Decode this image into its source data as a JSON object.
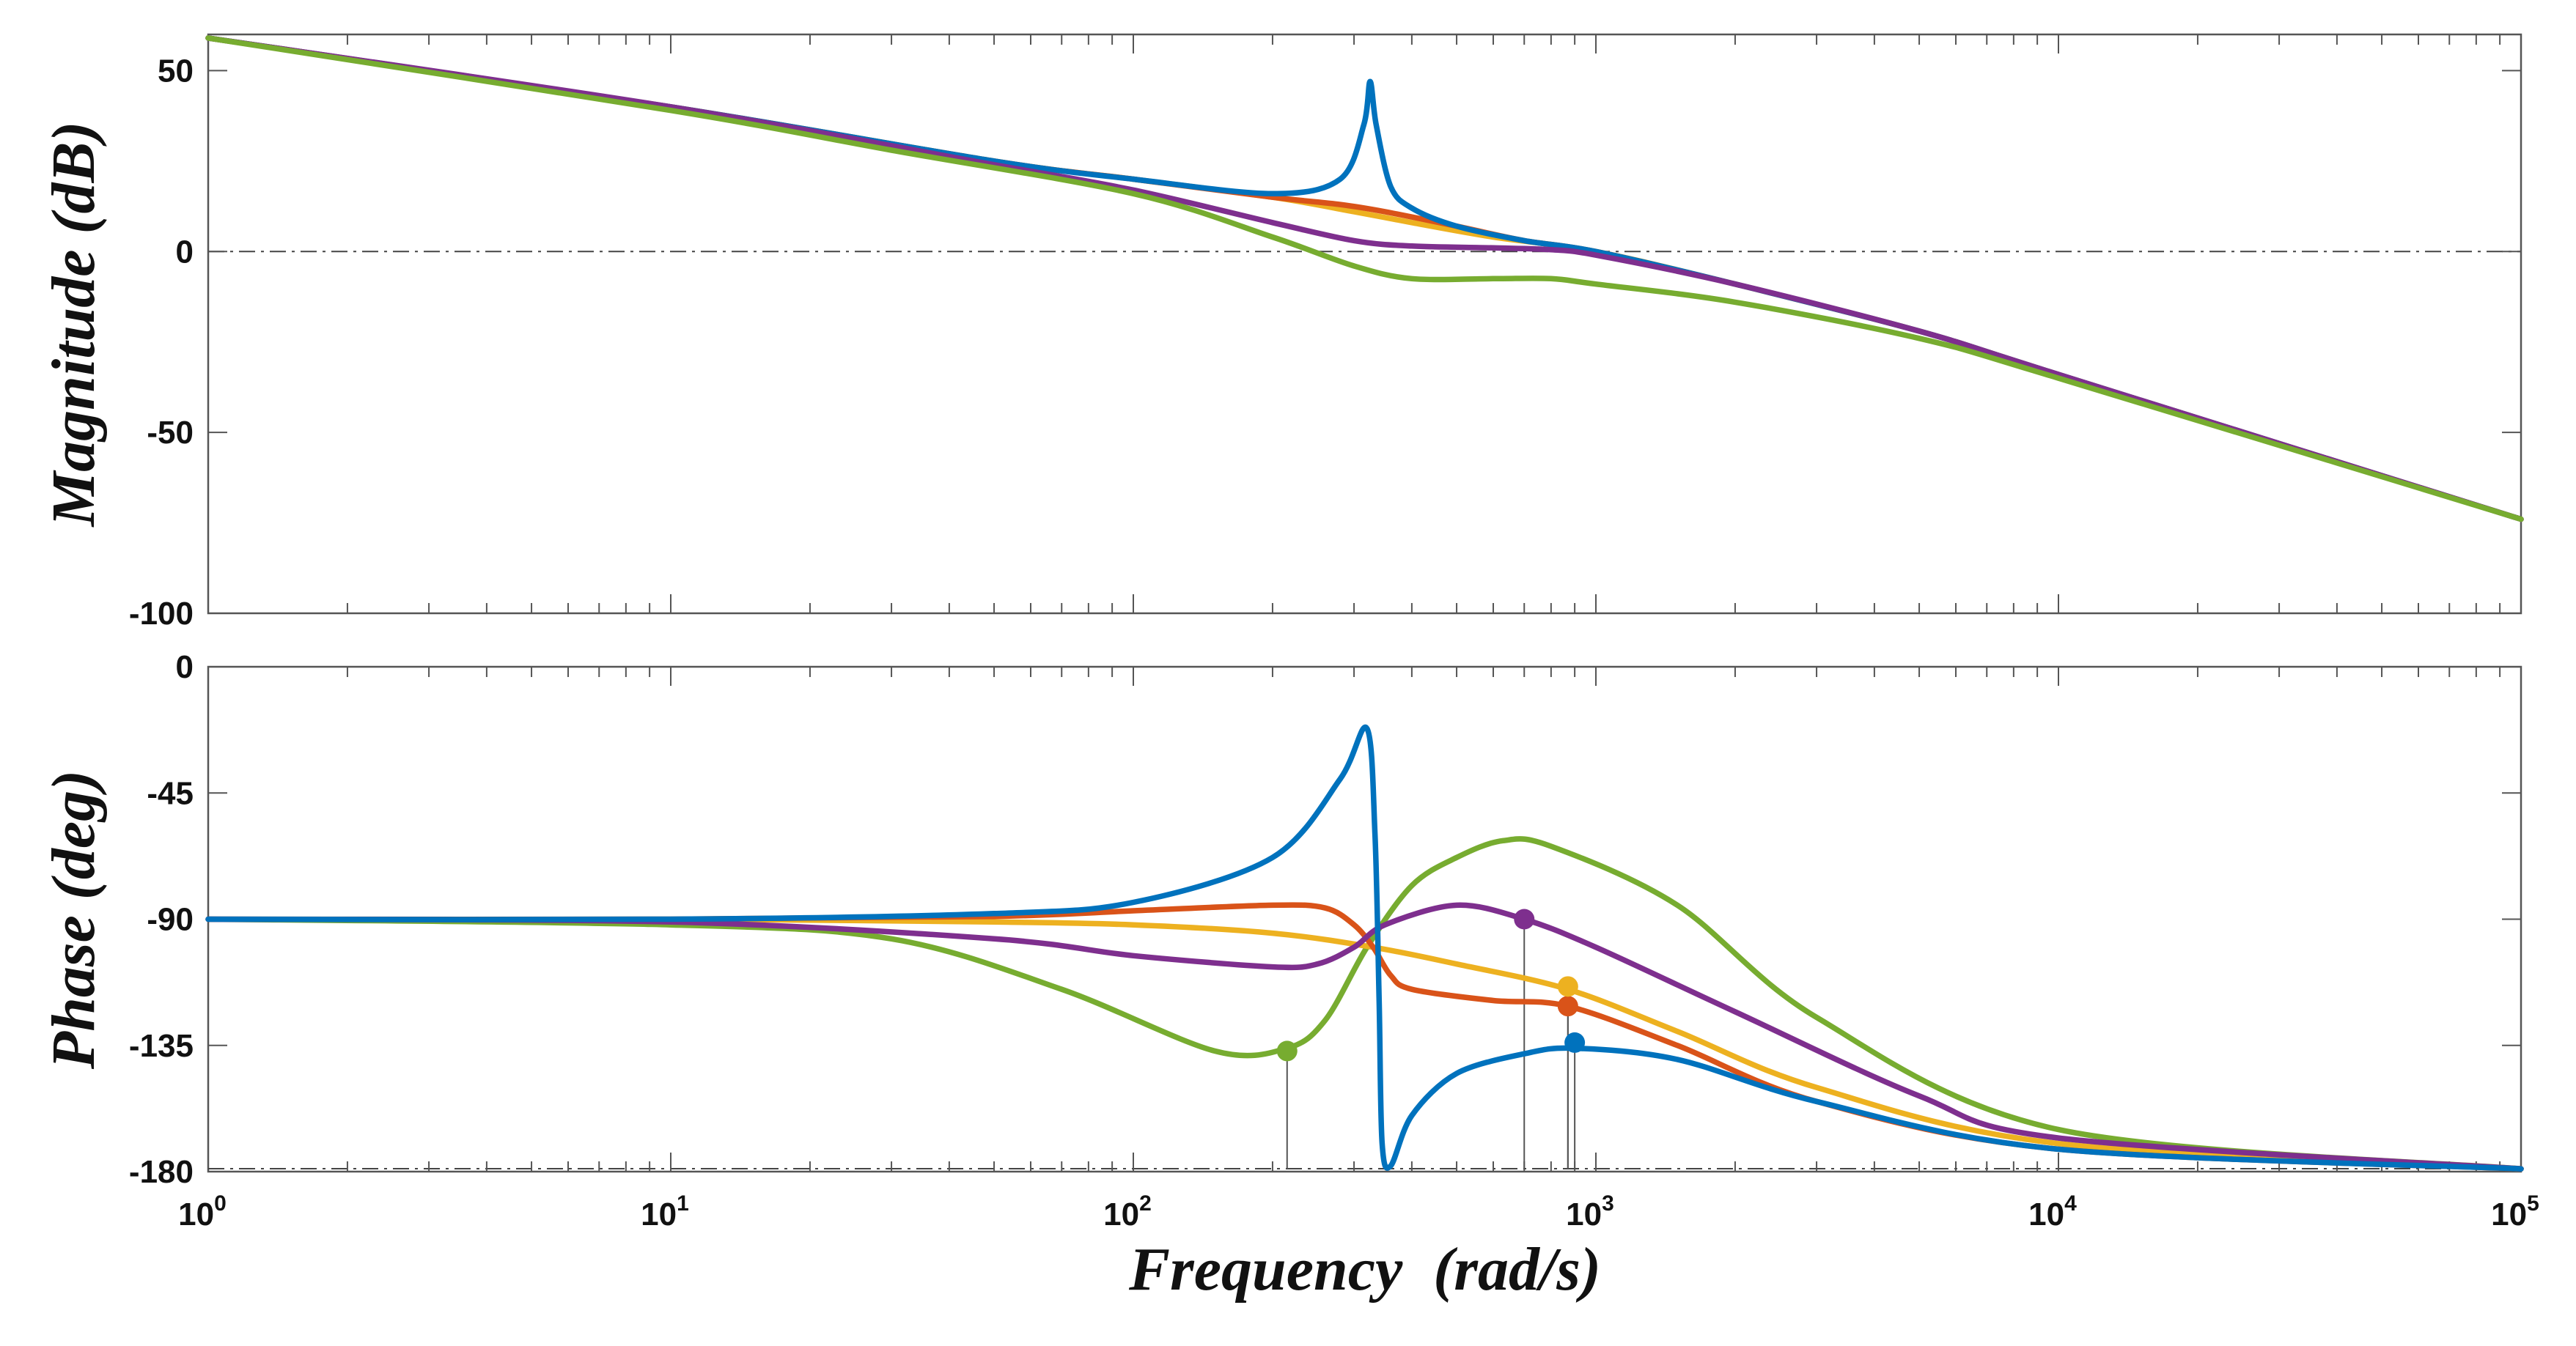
{
  "chart_data": {
    "type": "line",
    "title": "",
    "xlabel": "Frequency  (rad/s)",
    "xscale": "log",
    "xlim": [
      1,
      100000
    ],
    "x_ticks": [
      {
        "base": "10",
        "exp": "0"
      },
      {
        "base": "10",
        "exp": "1"
      },
      {
        "base": "10",
        "exp": "2"
      },
      {
        "base": "10",
        "exp": "3"
      },
      {
        "base": "10",
        "exp": "4"
      },
      {
        "base": "10",
        "exp": "5"
      }
    ],
    "magnitude": {
      "ylabel": "Magnitude (dB)",
      "ylim": [
        -100,
        60
      ],
      "y_ticks": [
        "50",
        "0",
        "-50",
        "-100"
      ],
      "reference_line": 0
    },
    "phase": {
      "ylabel": "Phase (deg)",
      "ylim": [
        -180,
        0
      ],
      "y_ticks": [
        "0",
        "-45",
        "-90",
        "-135",
        "-180"
      ],
      "reference_line": -180
    },
    "series": [
      {
        "name": "blue",
        "color": "#0072BD",
        "magnitude": [
          [
            1,
            59
          ],
          [
            10,
            40
          ],
          [
            50,
            25
          ],
          [
            100,
            20
          ],
          [
            200,
            16
          ],
          [
            280,
            20
          ],
          [
            315,
            35
          ],
          [
            325,
            47
          ],
          [
            335,
            35
          ],
          [
            360,
            18
          ],
          [
            400,
            12
          ],
          [
            500,
            7
          ],
          [
            700,
            3
          ],
          [
            1000,
            0
          ],
          [
            2000,
            -9
          ],
          [
            5000,
            -22
          ],
          [
            10000,
            -34
          ],
          [
            100000,
            -74
          ]
        ],
        "phase": [
          [
            1,
            -90
          ],
          [
            10,
            -90
          ],
          [
            50,
            -88
          ],
          [
            100,
            -84
          ],
          [
            200,
            -68
          ],
          [
            280,
            -40
          ],
          [
            320,
            -22
          ],
          [
            333,
            -60
          ],
          [
            340,
            -120
          ],
          [
            345,
            -170
          ],
          [
            360,
            -178
          ],
          [
            400,
            -160
          ],
          [
            500,
            -145
          ],
          [
            700,
            -138
          ],
          [
            900,
            -136
          ],
          [
            1500,
            -140
          ],
          [
            3000,
            -155
          ],
          [
            10000,
            -172
          ],
          [
            100000,
            -179
          ]
        ],
        "phase_margin_point": [
          900,
          -134
        ]
      },
      {
        "name": "orange",
        "color": "#D95319",
        "magnitude": [
          [
            1,
            59
          ],
          [
            10,
            40
          ],
          [
            50,
            25
          ],
          [
            100,
            20
          ],
          [
            200,
            15
          ],
          [
            280,
            13
          ],
          [
            350,
            11
          ],
          [
            500,
            7
          ],
          [
            700,
            3
          ],
          [
            1000,
            0
          ],
          [
            2000,
            -9
          ],
          [
            5000,
            -22
          ],
          [
            10000,
            -34
          ],
          [
            100000,
            -74
          ]
        ],
        "phase": [
          [
            1,
            -90
          ],
          [
            10,
            -90
          ],
          [
            50,
            -89
          ],
          [
            100,
            -87
          ],
          [
            200,
            -85
          ],
          [
            260,
            -86
          ],
          [
            300,
            -92
          ],
          [
            330,
            -100
          ],
          [
            360,
            -110
          ],
          [
            400,
            -115
          ],
          [
            600,
            -119
          ],
          [
            870,
            -121
          ],
          [
            1500,
            -135
          ],
          [
            3000,
            -155
          ],
          [
            10000,
            -172
          ],
          [
            100000,
            -179
          ]
        ],
        "phase_margin_point": [
          870,
          -121
        ]
      },
      {
        "name": "yellow",
        "color": "#EDB120",
        "magnitude": [
          [
            1,
            59
          ],
          [
            10,
            40
          ],
          [
            50,
            25
          ],
          [
            100,
            20
          ],
          [
            200,
            15
          ],
          [
            300,
            11
          ],
          [
            400,
            8
          ],
          [
            600,
            4
          ],
          [
            1000,
            0
          ],
          [
            2000,
            -9
          ],
          [
            5000,
            -22
          ],
          [
            10000,
            -34
          ],
          [
            100000,
            -74
          ]
        ],
        "phase": [
          [
            12,
            -90
          ],
          [
            50,
            -91
          ],
          [
            100,
            -92
          ],
          [
            200,
            -95
          ],
          [
            330,
            -100
          ],
          [
            500,
            -106
          ],
          [
            870,
            -115
          ],
          [
            1500,
            -130
          ],
          [
            3000,
            -150
          ],
          [
            10000,
            -170
          ],
          [
            100000,
            -179
          ]
        ],
        "phase_margin_point": [
          870,
          -114
        ]
      },
      {
        "name": "purple",
        "color": "#7E2F8E",
        "magnitude": [
          [
            1,
            59
          ],
          [
            10,
            40
          ],
          [
            50,
            24
          ],
          [
            100,
            17
          ],
          [
            200,
            8
          ],
          [
            300,
            3
          ],
          [
            400,
            1.5
          ],
          [
            600,
            1
          ],
          [
            800,
            0.5
          ],
          [
            1000,
            -1
          ],
          [
            2000,
            -9
          ],
          [
            5000,
            -22
          ],
          [
            10000,
            -34
          ],
          [
            100000,
            -74
          ]
        ],
        "phase": [
          [
            1,
            -90
          ],
          [
            10,
            -91
          ],
          [
            50,
            -97
          ],
          [
            100,
            -103
          ],
          [
            200,
            -107
          ],
          [
            250,
            -106
          ],
          [
            300,
            -100
          ],
          [
            350,
            -92
          ],
          [
            500,
            -85
          ],
          [
            700,
            -90
          ],
          [
            1000,
            -100
          ],
          [
            2000,
            -123
          ],
          [
            5000,
            -153
          ],
          [
            10000,
            -168
          ],
          [
            100000,
            -179
          ]
        ],
        "phase_margin_point": [
          700,
          -90
        ]
      },
      {
        "name": "green",
        "color": "#77AC30",
        "magnitude": [
          [
            1,
            59
          ],
          [
            10,
            39
          ],
          [
            30,
            28
          ],
          [
            100,
            16
          ],
          [
            200,
            4
          ],
          [
            300,
            -4
          ],
          [
            400,
            -7.5
          ],
          [
            600,
            -7.5
          ],
          [
            800,
            -7.5
          ],
          [
            1000,
            -9
          ],
          [
            2000,
            -14
          ],
          [
            5000,
            -24
          ],
          [
            10000,
            -35
          ],
          [
            100000,
            -74
          ]
        ],
        "phase": [
          [
            1,
            -90
          ],
          [
            10,
            -92
          ],
          [
            30,
            -97
          ],
          [
            70,
            -115
          ],
          [
            150,
            -137
          ],
          [
            215,
            -136
          ],
          [
            260,
            -126
          ],
          [
            320,
            -100
          ],
          [
            400,
            -78
          ],
          [
            500,
            -68
          ],
          [
            630,
            -62
          ],
          [
            800,
            -64
          ],
          [
            1500,
            -85
          ],
          [
            3000,
            -125
          ],
          [
            10000,
            -165
          ],
          [
            100000,
            -179
          ]
        ],
        "phase_margin_point": [
          215,
          -137
        ]
      }
    ]
  }
}
